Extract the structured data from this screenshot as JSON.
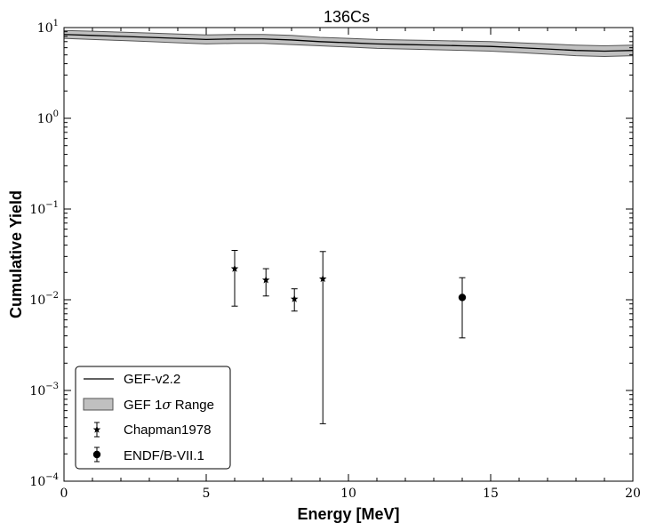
{
  "chart_data": {
    "type": "line",
    "title": "136Cs",
    "xlabel": "Energy [MeV]",
    "ylabel": "Cumulative Yield",
    "xlim": [
      0,
      20
    ],
    "ylim": [
      0.0001,
      10
    ],
    "yscale": "log",
    "x_ticks": [
      "0",
      "5",
      "10",
      "15",
      "20"
    ],
    "y_ticks": [
      {
        "base": "10",
        "exp": "1",
        "value": 10
      },
      {
        "base": "10",
        "exp": "0",
        "value": 1
      },
      {
        "base": "10",
        "exp": "−1",
        "value": 0.1
      },
      {
        "base": "10",
        "exp": "−2",
        "value": 0.01
      },
      {
        "base": "10",
        "exp": "−3",
        "value": 0.001
      },
      {
        "base": "10",
        "exp": "−4",
        "value": 0.0001
      }
    ],
    "grid": false,
    "legend_position": "lower-left",
    "series": [
      {
        "name": "GEF-v2.2",
        "kind": "line",
        "color": "#000000",
        "x": [
          0,
          1,
          2,
          3,
          4,
          5,
          6,
          7,
          8,
          9,
          10,
          11,
          12,
          13,
          14,
          15,
          16,
          17,
          18,
          19,
          20
        ],
        "y": [
          8.4,
          8.2,
          8.0,
          7.8,
          7.6,
          7.4,
          7.5,
          7.5,
          7.3,
          7.0,
          6.8,
          6.6,
          6.5,
          6.4,
          6.3,
          6.2,
          6.0,
          5.8,
          5.6,
          5.5,
          5.6
        ]
      },
      {
        "name": "GEF 1σ Range",
        "kind": "band",
        "color": "#c0c0c0",
        "x": [
          0,
          1,
          2,
          3,
          4,
          5,
          6,
          7,
          8,
          9,
          10,
          11,
          12,
          13,
          14,
          15,
          16,
          17,
          18,
          19,
          20
        ],
        "lower": [
          7.6,
          7.4,
          7.2,
          7.0,
          6.8,
          6.6,
          6.7,
          6.7,
          6.5,
          6.3,
          6.1,
          5.9,
          5.8,
          5.7,
          5.6,
          5.5,
          5.3,
          5.1,
          4.9,
          4.8,
          4.9
        ],
        "upper": [
          9.3,
          9.1,
          8.9,
          8.7,
          8.5,
          8.3,
          8.4,
          8.4,
          8.2,
          7.8,
          7.6,
          7.4,
          7.3,
          7.2,
          7.1,
          7.0,
          6.8,
          6.6,
          6.4,
          6.3,
          6.4
        ]
      },
      {
        "name": "Chapman1978",
        "kind": "errorbar",
        "marker": "star",
        "color": "#000000",
        "points": [
          {
            "x": 6.0,
            "y": 0.022,
            "ylow": 0.0085,
            "yhigh": 0.035
          },
          {
            "x": 7.1,
            "y": 0.0165,
            "ylow": 0.011,
            "yhigh": 0.022
          },
          {
            "x": 8.1,
            "y": 0.0102,
            "ylow": 0.0075,
            "yhigh": 0.0132
          },
          {
            "x": 9.1,
            "y": 0.017,
            "ylow": 0.00043,
            "yhigh": 0.034
          }
        ]
      },
      {
        "name": "ENDF/B-VII.1",
        "kind": "errorbar",
        "marker": "circle",
        "color": "#000000",
        "points": [
          {
            "x": 14.0,
            "y": 0.0106,
            "ylow": 0.0038,
            "yhigh": 0.0175
          }
        ]
      }
    ]
  }
}
